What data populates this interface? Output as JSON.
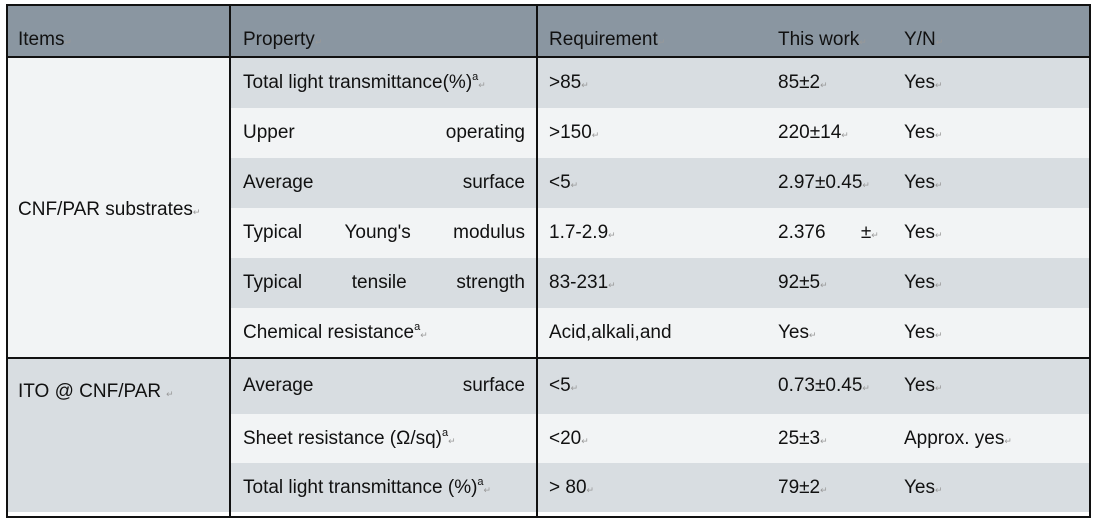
{
  "headers": [
    "Items",
    "Property",
    "Requirement",
    "This work",
    "Y/N"
  ],
  "groups": [
    {
      "label": "CNF/PAR substrates"
    },
    {
      "label": "ITO @ CNF/PAR"
    }
  ],
  "rows": [
    {
      "p_words": [
        "Total light transmittance(%)"
      ],
      "p_sup": "a",
      "req": ">85",
      "work": "85±2",
      "yn": "Yes"
    },
    {
      "p_words": [
        "Upper",
        "operating"
      ],
      "p_sup": "",
      "req": ">150",
      "work": "220±14",
      "yn": "Yes"
    },
    {
      "p_words": [
        "Average",
        "surface"
      ],
      "p_sup": "",
      "req": "<5",
      "work": "2.97±0.45",
      "yn": "Yes"
    },
    {
      "p_words": [
        "Typical",
        "Young's",
        "modulus"
      ],
      "p_sup": "",
      "req": "1.7-2.9",
      "work": "2.376 ±",
      "yn": "Yes"
    },
    {
      "p_words": [
        "Typical",
        "tensile",
        "strength"
      ],
      "p_sup": "",
      "req": "83-231",
      "work": "92±5",
      "yn": "Yes"
    },
    {
      "p_words": [
        "Chemical resistance"
      ],
      "p_sup": "a",
      "req": "Acid,alkali,and",
      "work": "Yes",
      "yn": "Yes"
    },
    {
      "p_words": [
        "Average",
        "surface"
      ],
      "p_sup": "",
      "req": "<5",
      "work": "0.73±0.45",
      "yn": "Yes"
    },
    {
      "p_words": [
        "Sheet resistance (Ω/sq)"
      ],
      "p_sup": "a",
      "req": "<20",
      "work": "25±3",
      "yn": "Approx. yes"
    },
    {
      "p_words": [
        "Total light transmittance (%)"
      ],
      "p_sup": "a",
      "req": "> 80",
      "work": "79±2",
      "yn": "Yes"
    }
  ],
  "colors": {
    "header": "#8a96a1",
    "band_dark": "#d8dde1",
    "band_light": "#f2f4f5",
    "border": "#111111"
  }
}
